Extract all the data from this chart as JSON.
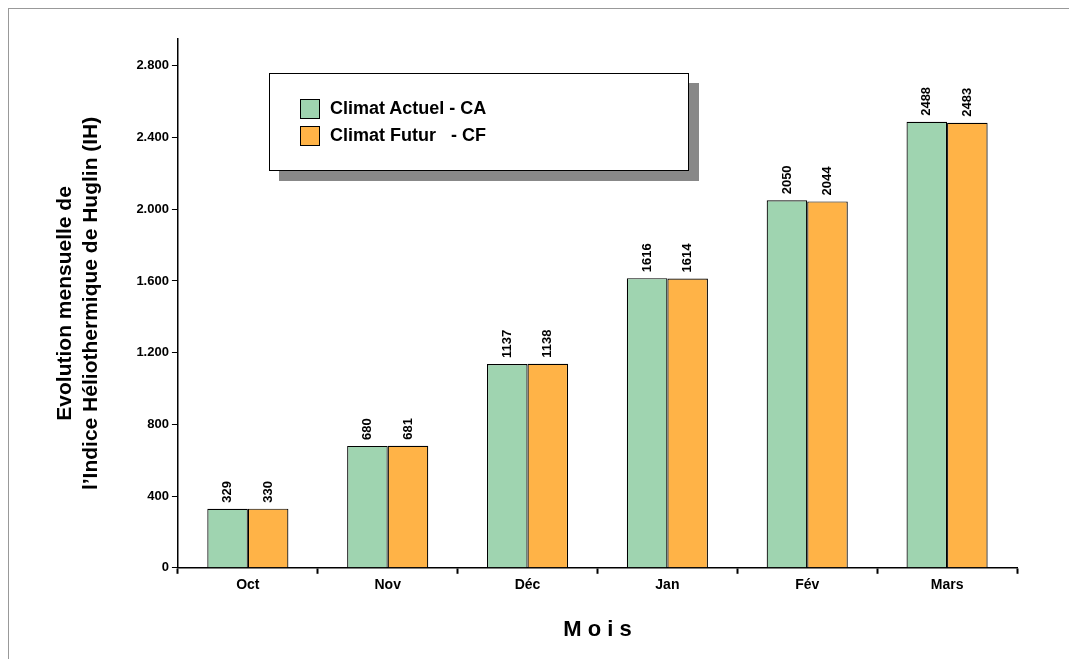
{
  "chart_data": {
    "type": "bar",
    "xlabel": "M o i s",
    "ylabel": "Evolution mensuelle de\nl’Indice Héliothermique de Huglin (IH)",
    "categories": [
      "Oct",
      "Nov",
      "Déc",
      "Jan",
      "Fév",
      "Mars"
    ],
    "series": [
      {
        "name": "Climat Actuel - CA",
        "color": "#9fd4b0",
        "values": [
          329,
          680,
          1137,
          1616,
          2050,
          2488
        ]
      },
      {
        "name": "Climat Futur   - CF",
        "color": "#ffb347",
        "values": [
          330,
          681,
          1138,
          1614,
          2044,
          2483
        ]
      }
    ],
    "ylim": [
      0,
      2950
    ],
    "yticks": [
      {
        "value": 0,
        "label": "0"
      },
      {
        "value": 400,
        "label": "400"
      },
      {
        "value": 800,
        "label": "800"
      },
      {
        "value": 1200,
        "label": "1.200"
      },
      {
        "value": 1600,
        "label": "1.600"
      },
      {
        "value": 2000,
        "label": "2.000"
      },
      {
        "value": 2400,
        "label": "2.400"
      },
      {
        "value": 2800,
        "label": "2.800"
      }
    ],
    "grid": false,
    "legend": "top left",
    "data_labels": true
  }
}
